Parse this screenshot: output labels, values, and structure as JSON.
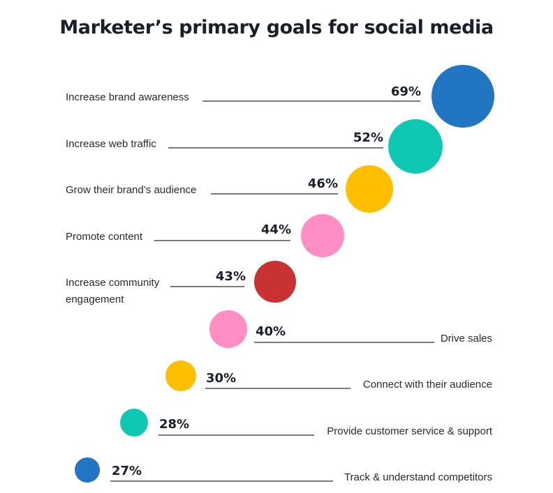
{
  "chart_data": {
    "type": "bubble",
    "title": "Marketer’s primary goals for social media",
    "unit": "%",
    "items": [
      {
        "label": [
          "Increase brand awareness"
        ],
        "value": 69,
        "display": "69%",
        "color": "#2175c2"
      },
      {
        "label": [
          "Increase web traffic"
        ],
        "value": 52,
        "display": "52%",
        "color": "#0fc8b3"
      },
      {
        "label": [
          "Grow their brand’s audience"
        ],
        "value": 46,
        "display": "46%",
        "color": "#ffbf00"
      },
      {
        "label": [
          "Promote content"
        ],
        "value": 44,
        "display": "44%",
        "color": "#ff8ec5"
      },
      {
        "label": [
          "Increase community",
          "engagement"
        ],
        "value": 43,
        "display": "43%",
        "color": "#c93232"
      },
      {
        "label": [
          "Drive sales"
        ],
        "value": 40,
        "display": "40%",
        "color": "#ff8ec5"
      },
      {
        "label": [
          "Connect with their audience"
        ],
        "value": 30,
        "display": "30%",
        "color": "#ffbf00"
      },
      {
        "label": [
          "Provide customer service & support"
        ],
        "value": 28,
        "display": "28%",
        "color": "#0fc8b3"
      },
      {
        "label": [
          "Track & understand competitors"
        ],
        "value": 27,
        "display": "27%",
        "color": "#2175c2"
      }
    ]
  }
}
